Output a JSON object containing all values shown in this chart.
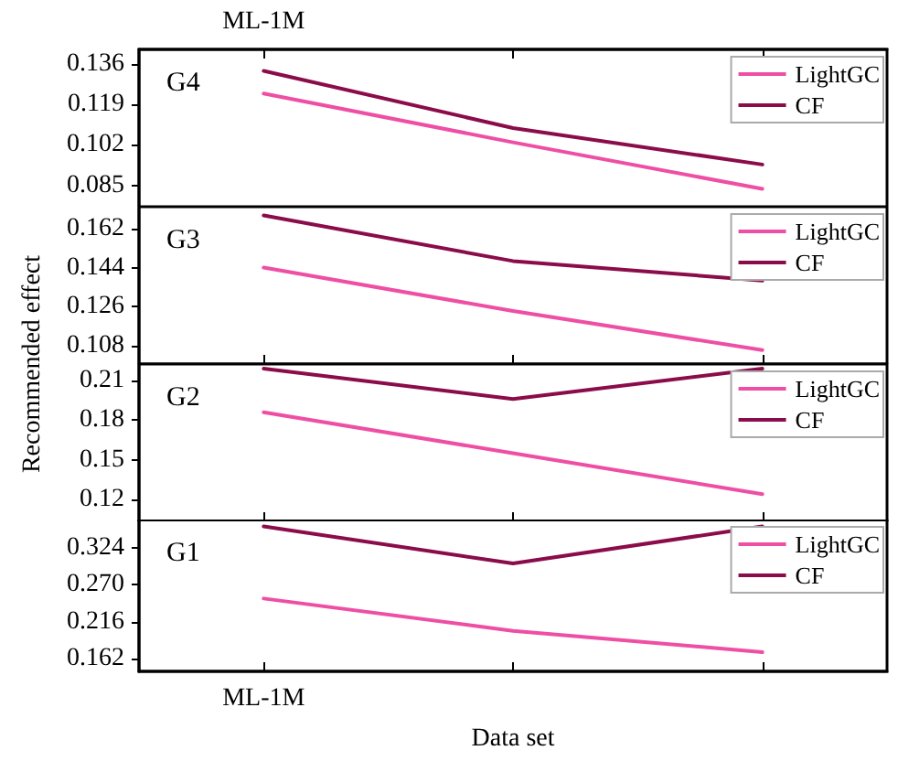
{
  "chart_data": [
    {
      "type": "line",
      "title": "G4",
      "ylabel": "Recommended effect",
      "categories": [
        "ML-1M",
        null,
        null
      ],
      "ylim": [
        0.076,
        0.142
      ],
      "yticks": [
        0.085,
        0.102,
        0.119,
        0.136
      ],
      "grid": false,
      "legend": "top right",
      "marker": "none",
      "line_style": "solid",
      "series": [
        {
          "name": "LightGC",
          "color": "#ee4fa4",
          "values": [
            0.1235,
            0.103,
            0.0835
          ]
        },
        {
          "name": "CF",
          "color": "#8b0c4a",
          "values": [
            0.133,
            0.109,
            0.0937
          ]
        }
      ]
    },
    {
      "type": "line",
      "title": "G3",
      "categories": [
        null,
        null,
        null
      ],
      "tick_labels": "y",
      "ylim": [
        0.0996,
        0.172
      ],
      "yticks": [
        0.108,
        0.126,
        0.144,
        0.162
      ],
      "grid": false,
      "legend": "top right",
      "marker": "none",
      "line_style": "solid",
      "series": [
        {
          "name": "LightGC",
          "color": "#ee4fa4",
          "values": [
            0.144,
            0.124,
            0.106
          ]
        },
        {
          "name": "CF",
          "color": "#8b0c4a",
          "values": [
            0.168,
            0.147,
            0.138
          ]
        }
      ]
    },
    {
      "type": "line",
      "title": "G2",
      "categories": [
        null,
        null,
        null
      ],
      "tick_labels": "y",
      "ylim": [
        0.1034,
        0.2225
      ],
      "yticks": [
        0.12,
        0.15,
        0.18,
        0.21
      ],
      "grid": false,
      "legend": "top right",
      "marker": "none",
      "line_style": "solid",
      "series": [
        {
          "name": "LightGC",
          "color": "#ee4fa4",
          "values": [
            0.186,
            0.155,
            0.124
          ]
        },
        {
          "name": "CF",
          "color": "#8b0c4a",
          "values": [
            0.219,
            0.196,
            0.219
          ]
        }
      ]
    },
    {
      "type": "line",
      "title": "G1",
      "xlabel": "Data set",
      "categories": [
        "ML-1M",
        null,
        null
      ],
      "ylim": [
        0.144,
        0.365
      ],
      "yticks": [
        0.162,
        0.216,
        {
          "value": 0.27,
          "label": "0.270"
        },
        0.324
      ],
      "grid": false,
      "legend": "top right",
      "marker": "none",
      "line_style": "solid",
      "series": [
        {
          "name": "LightGC",
          "color": "#ee4fa4",
          "values": [
            0.25,
            0.203,
            0.172
          ]
        },
        {
          "name": "CF",
          "color": "#8b0c4a",
          "values": [
            0.355,
            0.301,
            0.355
          ]
        }
      ]
    }
  ]
}
